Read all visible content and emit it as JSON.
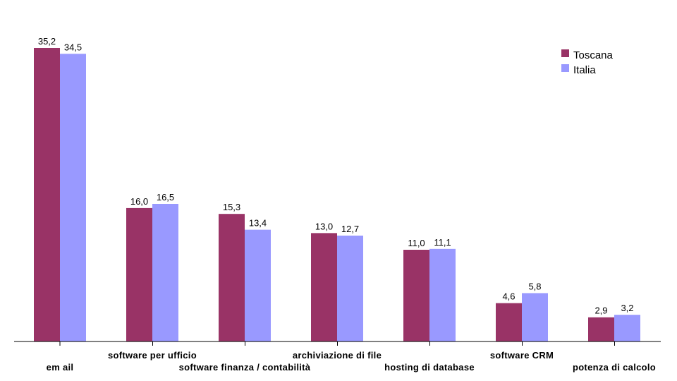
{
  "chart_data": {
    "type": "bar",
    "categories": [
      "email",
      "software per ufficio",
      "software finanza / contabilità",
      "archiviazione di file",
      "hosting di database",
      "software CRM",
      "potenza di calcolo"
    ],
    "category_labels": [
      "em ail",
      "software per ufficio",
      "software finanza / contabilità",
      "archiviazione di file",
      "hosting di database",
      "software CRM",
      "potenza di calcolo"
    ],
    "series": [
      {
        "name": "Toscana",
        "values": [
          35.2,
          16.0,
          15.3,
          13.0,
          11.0,
          4.6,
          2.9
        ],
        "labels": [
          "35,2",
          "16,0",
          "15,3",
          "13,0",
          "11,0",
          "4,6",
          "2,9"
        ],
        "color": "#993366"
      },
      {
        "name": "Italia",
        "values": [
          34.5,
          16.5,
          13.4,
          12.7,
          11.1,
          5.8,
          3.2
        ],
        "labels": [
          "34,5",
          "16,5",
          "13,4",
          "12,7",
          "11,1",
          "5,8",
          "3,2"
        ],
        "color": "#9999ff"
      }
    ],
    "title": "",
    "xlabel": "",
    "ylabel": "",
    "ylim": [
      0,
      36
    ],
    "grid": false,
    "legend_position": "top-right"
  }
}
